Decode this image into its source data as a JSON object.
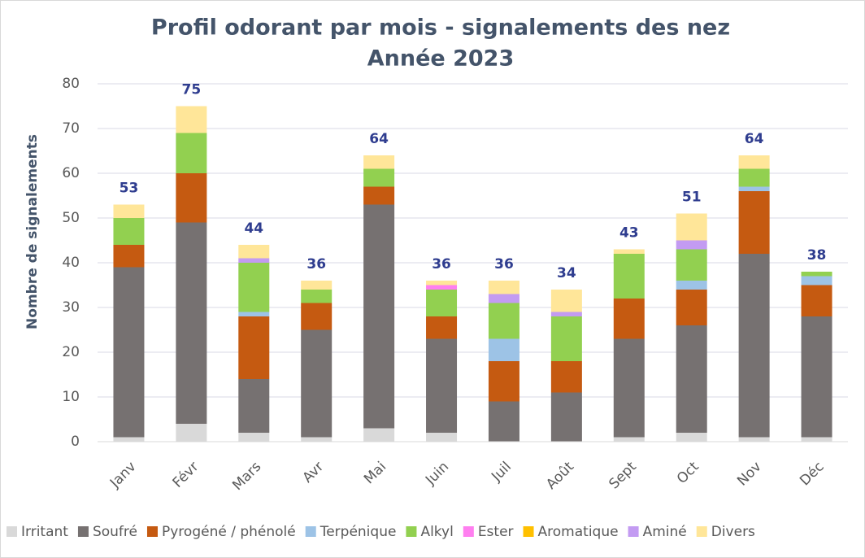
{
  "chart_data": {
    "type": "stacked_bar",
    "title": "Profil odorant par mois - signalements des nez",
    "subtitle": "Année 2023",
    "y_label": "Nombre de signalements",
    "categories": [
      "Janv",
      "Févr",
      "Mars",
      "Avr",
      "Mai",
      "Juin",
      "Juil",
      "Août",
      "Sept",
      "Oct",
      "Nov",
      "Déc"
    ],
    "series": [
      {
        "name": "Irritant",
        "color": "#d9d9d9",
        "values": [
          1,
          4,
          2,
          1,
          3,
          2,
          0,
          0,
          1,
          2,
          1,
          1
        ]
      },
      {
        "name": "Soufré",
        "color": "#767171",
        "values": [
          38,
          45,
          12,
          24,
          50,
          21,
          9,
          11,
          22,
          24,
          41,
          27
        ]
      },
      {
        "name": "Pyrogéné / phénolé",
        "color": "#c55a11",
        "values": [
          5,
          11,
          14,
          6,
          4,
          5,
          9,
          7,
          9,
          8,
          14,
          7
        ]
      },
      {
        "name": "Terpénique",
        "color": "#9dc3e6",
        "values": [
          0,
          0,
          1,
          0,
          0,
          0,
          5,
          0,
          0,
          2,
          1,
          2
        ]
      },
      {
        "name": "Alkyl",
        "color": "#92d050",
        "values": [
          6,
          9,
          11,
          3,
          4,
          6,
          8,
          10,
          10,
          7,
          4,
          1
        ]
      },
      {
        "name": "Ester",
        "color": "#ff7ff0",
        "values": [
          0,
          0,
          0,
          0,
          0,
          1,
          0,
          0,
          0,
          0,
          0,
          0
        ]
      },
      {
        "name": "Aromatique",
        "color": "#ffc000",
        "values": [
          0,
          0,
          0,
          0,
          0,
          0,
          0,
          0,
          0,
          0,
          0,
          0
        ]
      },
      {
        "name": "Aminé",
        "color": "#c39bf2",
        "values": [
          0,
          0,
          1,
          0,
          0,
          0,
          2,
          1,
          0,
          2,
          0,
          0
        ]
      },
      {
        "name": "Divers",
        "color": "#ffe699",
        "values": [
          3,
          6,
          3,
          2,
          3,
          1,
          3,
          5,
          1,
          6,
          3,
          0
        ]
      }
    ],
    "totals": [
      53,
      75,
      44,
      36,
      64,
      36,
      36,
      34,
      43,
      51,
      64,
      38
    ],
    "ylim": [
      0,
      80
    ],
    "yticks": [
      0,
      10,
      20,
      30,
      40,
      50,
      60,
      70,
      80
    ],
    "grid": true,
    "legend": "bottom"
  }
}
